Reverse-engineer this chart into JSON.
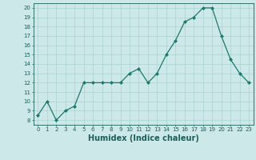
{
  "xlabel": "Humidex (Indice chaleur)",
  "ylabel": "",
  "x": [
    0,
    1,
    2,
    3,
    4,
    5,
    6,
    7,
    8,
    9,
    10,
    11,
    12,
    13,
    14,
    15,
    16,
    17,
    18,
    19,
    20,
    21,
    22,
    23
  ],
  "y": [
    8.5,
    10.0,
    8.0,
    9.0,
    9.5,
    12.0,
    12.0,
    12.0,
    12.0,
    12.0,
    13.0,
    13.5,
    12.0,
    13.0,
    15.0,
    16.5,
    18.5,
    19.0,
    20.0,
    20.0,
    17.0,
    14.5,
    13.0,
    12.0
  ],
  "line_color": "#1a7a6e",
  "marker": "D",
  "marker_size": 2,
  "bg_color": "#cce8e8",
  "grid_color": "#aad0d0",
  "ylim": [
    7.5,
    20.5
  ],
  "xlim": [
    -0.5,
    23.5
  ],
  "yticks": [
    8,
    9,
    10,
    11,
    12,
    13,
    14,
    15,
    16,
    17,
    18,
    19,
    20
  ],
  "xticks": [
    0,
    1,
    2,
    3,
    4,
    5,
    6,
    7,
    8,
    9,
    10,
    11,
    12,
    13,
    14,
    15,
    16,
    17,
    18,
    19,
    20,
    21,
    22,
    23
  ],
  "tick_fontsize": 5.0,
  "xlabel_fontsize": 7.0,
  "axis_color": "#1a5f5a"
}
